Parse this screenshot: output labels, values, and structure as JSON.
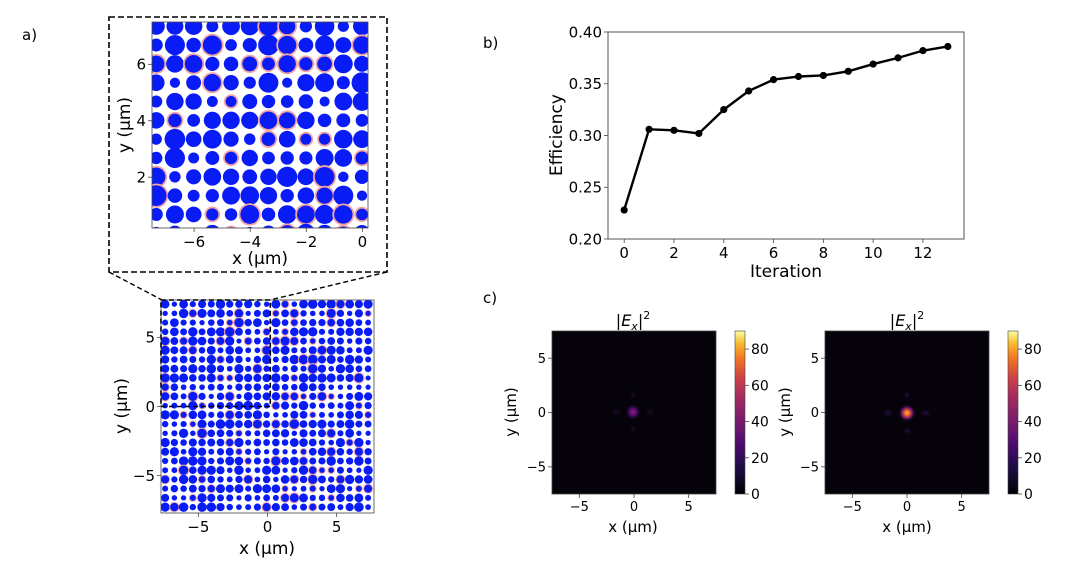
{
  "panel_labels": {
    "a": "a)",
    "b": "b)",
    "c": "c)"
  },
  "chart_data": [
    {
      "id": "a-zoom",
      "type": "scatter",
      "title": "",
      "description": "Zoomed-in nanopillar layout (blue discs of varying radius, pink halos)",
      "xlabel": "x (μm)",
      "ylabel": "y (μm)",
      "xlim": [
        -7.5,
        0.2
      ],
      "ylim": [
        0.2,
        7.5
      ],
      "xticks": [
        -6,
        -4,
        -2,
        0
      ],
      "yticks": [
        2,
        4,
        6
      ],
      "pillar_color": "#0a1cf5",
      "halo_color": "#f4a6a6",
      "grid_pitch_um": 0.667
    },
    {
      "id": "a-full",
      "type": "scatter",
      "title": "",
      "description": "Full metasurface nanopillar layout",
      "xlabel": "x (μm)",
      "ylabel": "y (μm)",
      "xlim": [
        -7.7,
        7.7
      ],
      "ylim": [
        -7.7,
        7.7
      ],
      "xticks": [
        -5,
        0,
        5
      ],
      "yticks": [
        -5,
        0,
        5
      ],
      "pillar_color": "#0a1cf5",
      "halo_color": "#f4a6a6",
      "zoom_region": {
        "x": [
          -7.7,
          0.2
        ],
        "y": [
          0,
          7.7
        ]
      }
    },
    {
      "id": "b",
      "type": "line",
      "title": "",
      "xlabel": "Iteration",
      "ylabel": "Efficiency",
      "x": [
        0,
        1,
        2,
        3,
        4,
        5,
        6,
        7,
        8,
        9,
        10,
        11,
        12,
        13
      ],
      "series": [
        {
          "name": "Efficiency",
          "color": "#000000",
          "values": [
            0.228,
            0.306,
            0.305,
            0.302,
            0.325,
            0.343,
            0.354,
            0.357,
            0.358,
            0.362,
            0.369,
            0.375,
            0.382,
            0.386
          ]
        }
      ],
      "xlim": [
        -0.65,
        13.65
      ],
      "ylim": [
        0.2,
        0.4
      ],
      "xticks": [
        0,
        2,
        4,
        6,
        8,
        10,
        12
      ],
      "yticks": [
        0.2,
        0.25,
        0.3,
        0.35,
        0.4
      ],
      "ytick_labels": [
        "0.20",
        "0.25",
        "0.30",
        "0.35",
        "0.40"
      ],
      "grid": false
    },
    {
      "id": "c-left",
      "type": "heatmap",
      "title": "|E_x|²",
      "xlabel": "x (μm)",
      "ylabel": "y (μm)",
      "xlim": [
        -7.5,
        7.5
      ],
      "ylim": [
        -7.5,
        7.5
      ],
      "xticks": [
        -5,
        0,
        5
      ],
      "yticks": [
        -5,
        0,
        5
      ],
      "colormap": "inferno",
      "colorbar": {
        "min": 0,
        "max": 90,
        "ticks": [
          0,
          20,
          40,
          60,
          80
        ]
      },
      "peak_value": 28,
      "peak_location": [
        0,
        0
      ]
    },
    {
      "id": "c-right",
      "type": "heatmap",
      "title": "|E_x|²",
      "xlabel": "x (μm)",
      "ylabel": "y (μm)",
      "xlim": [
        -7.5,
        7.5
      ],
      "ylim": [
        -7.5,
        7.5
      ],
      "xticks": [
        -5,
        0,
        5
      ],
      "yticks": [
        -5,
        0,
        5
      ],
      "colormap": "inferno",
      "colorbar": {
        "min": 0,
        "max": 90,
        "ticks": [
          0,
          20,
          40,
          60,
          80
        ]
      },
      "peak_value": 75,
      "peak_location": [
        0,
        0
      ]
    }
  ]
}
